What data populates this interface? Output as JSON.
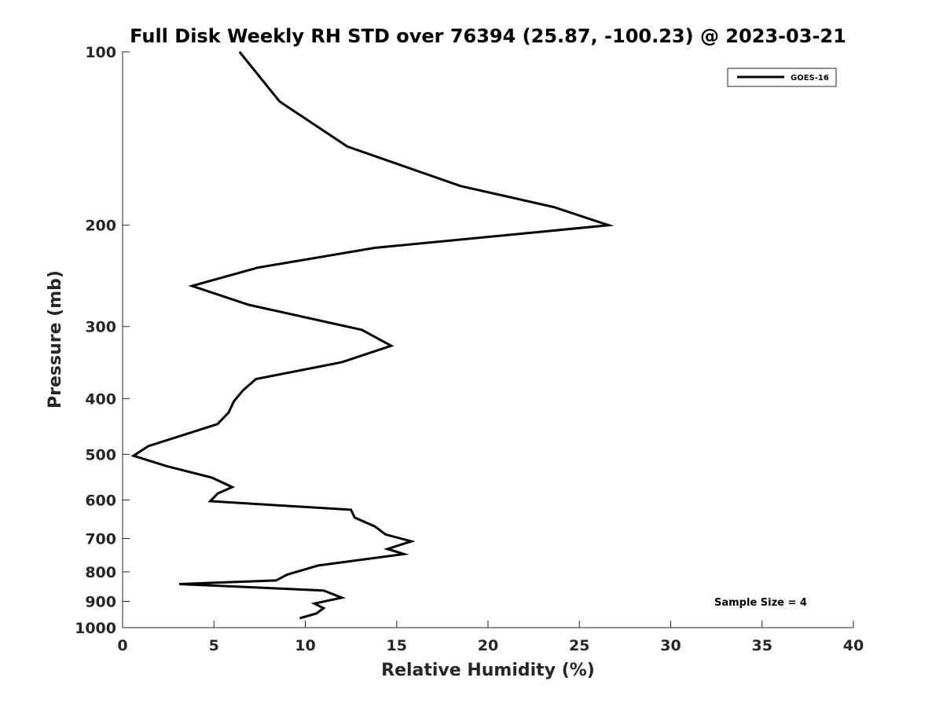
{
  "chart_data": {
    "type": "line",
    "title": "Full Disk Weekly RH STD over 76394 (25.87, -100.23) @ 2023-03-21",
    "xlabel": "Relative Humidity (%)",
    "ylabel": "Pressure (mb)",
    "xlim": [
      0,
      40
    ],
    "ylim": [
      100,
      1000
    ],
    "yscale": "log",
    "y_reversed": true,
    "x_ticks": [
      0,
      5,
      10,
      15,
      20,
      25,
      30,
      35,
      40
    ],
    "y_ticks": [
      100,
      200,
      300,
      400,
      500,
      600,
      700,
      800,
      900,
      1000
    ],
    "grid": false,
    "legend_position": "top-right",
    "annotation": "Sample Size = 4",
    "series": [
      {
        "name": "GOES-16",
        "color": "#000000",
        "points": [
          [
            6.4,
            100
          ],
          [
            8.6,
            122
          ],
          [
            12.3,
            146
          ],
          [
            18.5,
            171
          ],
          [
            23.6,
            186
          ],
          [
            26.6,
            200
          ],
          [
            13.8,
            219
          ],
          [
            7.4,
            237
          ],
          [
            3.8,
            255
          ],
          [
            6.9,
            275
          ],
          [
            13.1,
            304
          ],
          [
            14.7,
            324
          ],
          [
            12.0,
            346
          ],
          [
            7.3,
            370
          ],
          [
            6.6,
            387
          ],
          [
            6.1,
            404
          ],
          [
            5.8,
            423
          ],
          [
            5.2,
            443
          ],
          [
            1.4,
            484
          ],
          [
            0.6,
            503
          ],
          [
            2.4,
            524
          ],
          [
            4.9,
            549
          ],
          [
            6.0,
            570
          ],
          [
            5.2,
            585
          ],
          [
            4.8,
            603
          ],
          [
            12.5,
            624
          ],
          [
            12.7,
            644
          ],
          [
            13.8,
            667
          ],
          [
            14.4,
            689
          ],
          [
            15.8,
            708
          ],
          [
            14.5,
            730
          ],
          [
            15.4,
            745
          ],
          [
            10.7,
            780
          ],
          [
            9.0,
            809
          ],
          [
            8.4,
            828
          ],
          [
            3.1,
            840
          ],
          [
            11.0,
            862
          ],
          [
            12.0,
            887
          ],
          [
            10.5,
            908
          ],
          [
            11.0,
            925
          ],
          [
            10.6,
            945
          ],
          [
            9.7,
            963
          ]
        ]
      }
    ]
  }
}
